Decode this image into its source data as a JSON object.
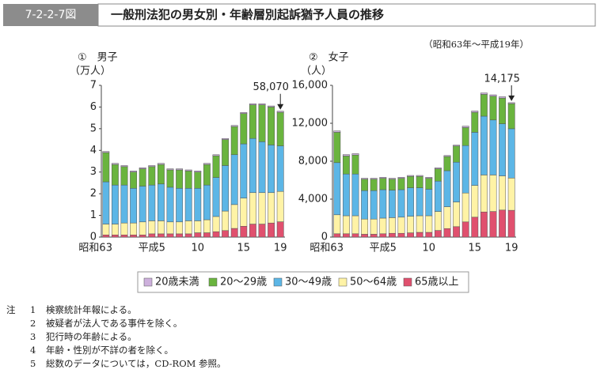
{
  "figure_number": "7-2-2-7図",
  "title": "一般刑法犯の男女別・年齢層別起訴猶予人員の推移",
  "period": "（昭和63年～平成19年）",
  "chart_data": [
    {
      "type": "bar",
      "stacked": true,
      "title": "①　男子",
      "y_label": "（万人）",
      "categories": [
        "昭和63",
        null,
        null,
        null,
        null,
        "平成5",
        null,
        null,
        null,
        null,
        "10",
        null,
        null,
        null,
        null,
        "15",
        null,
        null,
        null,
        "19"
      ],
      "ylim": [
        0,
        7
      ],
      "yticks": [
        0,
        1,
        2,
        3,
        4,
        5,
        6,
        7
      ],
      "annotation": "58,070",
      "series": [
        {
          "name": "65歳以上",
          "color": "#e0506e",
          "values": [
            0.1,
            0.1,
            0.1,
            0.1,
            0.1,
            0.15,
            0.15,
            0.15,
            0.15,
            0.15,
            0.2,
            0.2,
            0.25,
            0.3,
            0.4,
            0.5,
            0.6,
            0.6,
            0.65,
            0.707
          ]
        },
        {
          "name": "50～64歳",
          "color": "#fff3a6",
          "values": [
            0.5,
            0.5,
            0.55,
            0.55,
            0.6,
            0.6,
            0.6,
            0.55,
            0.55,
            0.6,
            0.55,
            0.6,
            0.7,
            0.9,
            1.1,
            1.3,
            1.45,
            1.45,
            1.4,
            1.4
          ]
        },
        {
          "name": "30～49歳",
          "color": "#5cb6e6",
          "values": [
            1.95,
            1.8,
            1.75,
            1.6,
            1.65,
            1.65,
            1.7,
            1.6,
            1.55,
            1.5,
            1.5,
            1.6,
            1.8,
            2.1,
            2.3,
            2.5,
            2.5,
            2.35,
            2.2,
            2.1
          ]
        },
        {
          "name": "20～29歳",
          "color": "#6ab43e",
          "values": [
            1.35,
            0.95,
            0.85,
            0.75,
            0.8,
            0.85,
            0.9,
            0.8,
            0.85,
            0.8,
            0.75,
            0.95,
            1.0,
            1.2,
            1.3,
            1.4,
            1.55,
            1.7,
            1.75,
            1.55
          ]
        },
        {
          "name": "20歳未満",
          "color": "#cdb0dc",
          "values": [
            0.05,
            0.05,
            0.05,
            0.05,
            0.05,
            0.05,
            0.05,
            0.05,
            0.05,
            0.05,
            0.05,
            0.05,
            0.05,
            0.05,
            0.05,
            0.05,
            0.05,
            0.05,
            0.05,
            0.05
          ]
        }
      ]
    },
    {
      "type": "bar",
      "stacked": true,
      "title": "②　女子",
      "y_label": "（人）",
      "categories": [
        "昭和63",
        null,
        null,
        null,
        null,
        "平成5",
        null,
        null,
        null,
        null,
        "10",
        null,
        null,
        null,
        null,
        "15",
        null,
        null,
        null,
        "19"
      ],
      "ylim": [
        0,
        16000
      ],
      "yticks": [
        0,
        {
          "value": 4000,
          "label": "4,000"
        },
        {
          "value": 8000,
          "label": "8,000"
        },
        {
          "value": 12000,
          "label": "12,000"
        },
        {
          "value": 16000,
          "label": "16,000"
        }
      ],
      "annotation": "14,175",
      "series": [
        {
          "color": "#e0506e",
          "values": [
            350,
            350,
            350,
            300,
            300,
            350,
            400,
            400,
            450,
            500,
            500,
            700,
            900,
            1100,
            1600,
            2100,
            2650,
            2700,
            2850,
            2825
          ]
        },
        {
          "color": "#fff3a6",
          "values": [
            2000,
            1900,
            1900,
            1600,
            1600,
            1650,
            1650,
            1700,
            1750,
            1750,
            1750,
            2000,
            2300,
            2600,
            3050,
            3350,
            3900,
            3850,
            3600,
            3400
          ]
        },
        {
          "color": "#5cb6e6",
          "values": [
            5500,
            4400,
            4400,
            3000,
            3000,
            3000,
            2900,
            2900,
            3000,
            2950,
            2800,
            3200,
            3800,
            4200,
            5000,
            5600,
            6200,
            5800,
            5500,
            5200
          ]
        },
        {
          "color": "#6ab43e",
          "values": [
            3200,
            1900,
            2000,
            1200,
            1200,
            1200,
            1150,
            1200,
            1200,
            1200,
            1150,
            1300,
            1500,
            1700,
            1900,
            2100,
            2300,
            2500,
            2700,
            2650
          ]
        },
        {
          "color": "#cdb0dc",
          "values": [
            150,
            150,
            150,
            100,
            100,
            100,
            100,
            100,
            100,
            100,
            100,
            100,
            100,
            100,
            150,
            150,
            150,
            150,
            150,
            100
          ]
        }
      ]
    }
  ],
  "note_label": "注",
  "notes": [
    {
      "number": "1",
      "text": "検察統計年報による。"
    },
    {
      "number": "2",
      "text": "被疑者が法人である事件を除く。"
    },
    {
      "number": "3",
      "text": "犯行時の年齢による。"
    },
    {
      "number": "4",
      "text": "年齢・性別が不詳の者を除く。"
    },
    {
      "number": "5",
      "text": "総数のデータについては，CD-ROM 参照。"
    }
  ]
}
